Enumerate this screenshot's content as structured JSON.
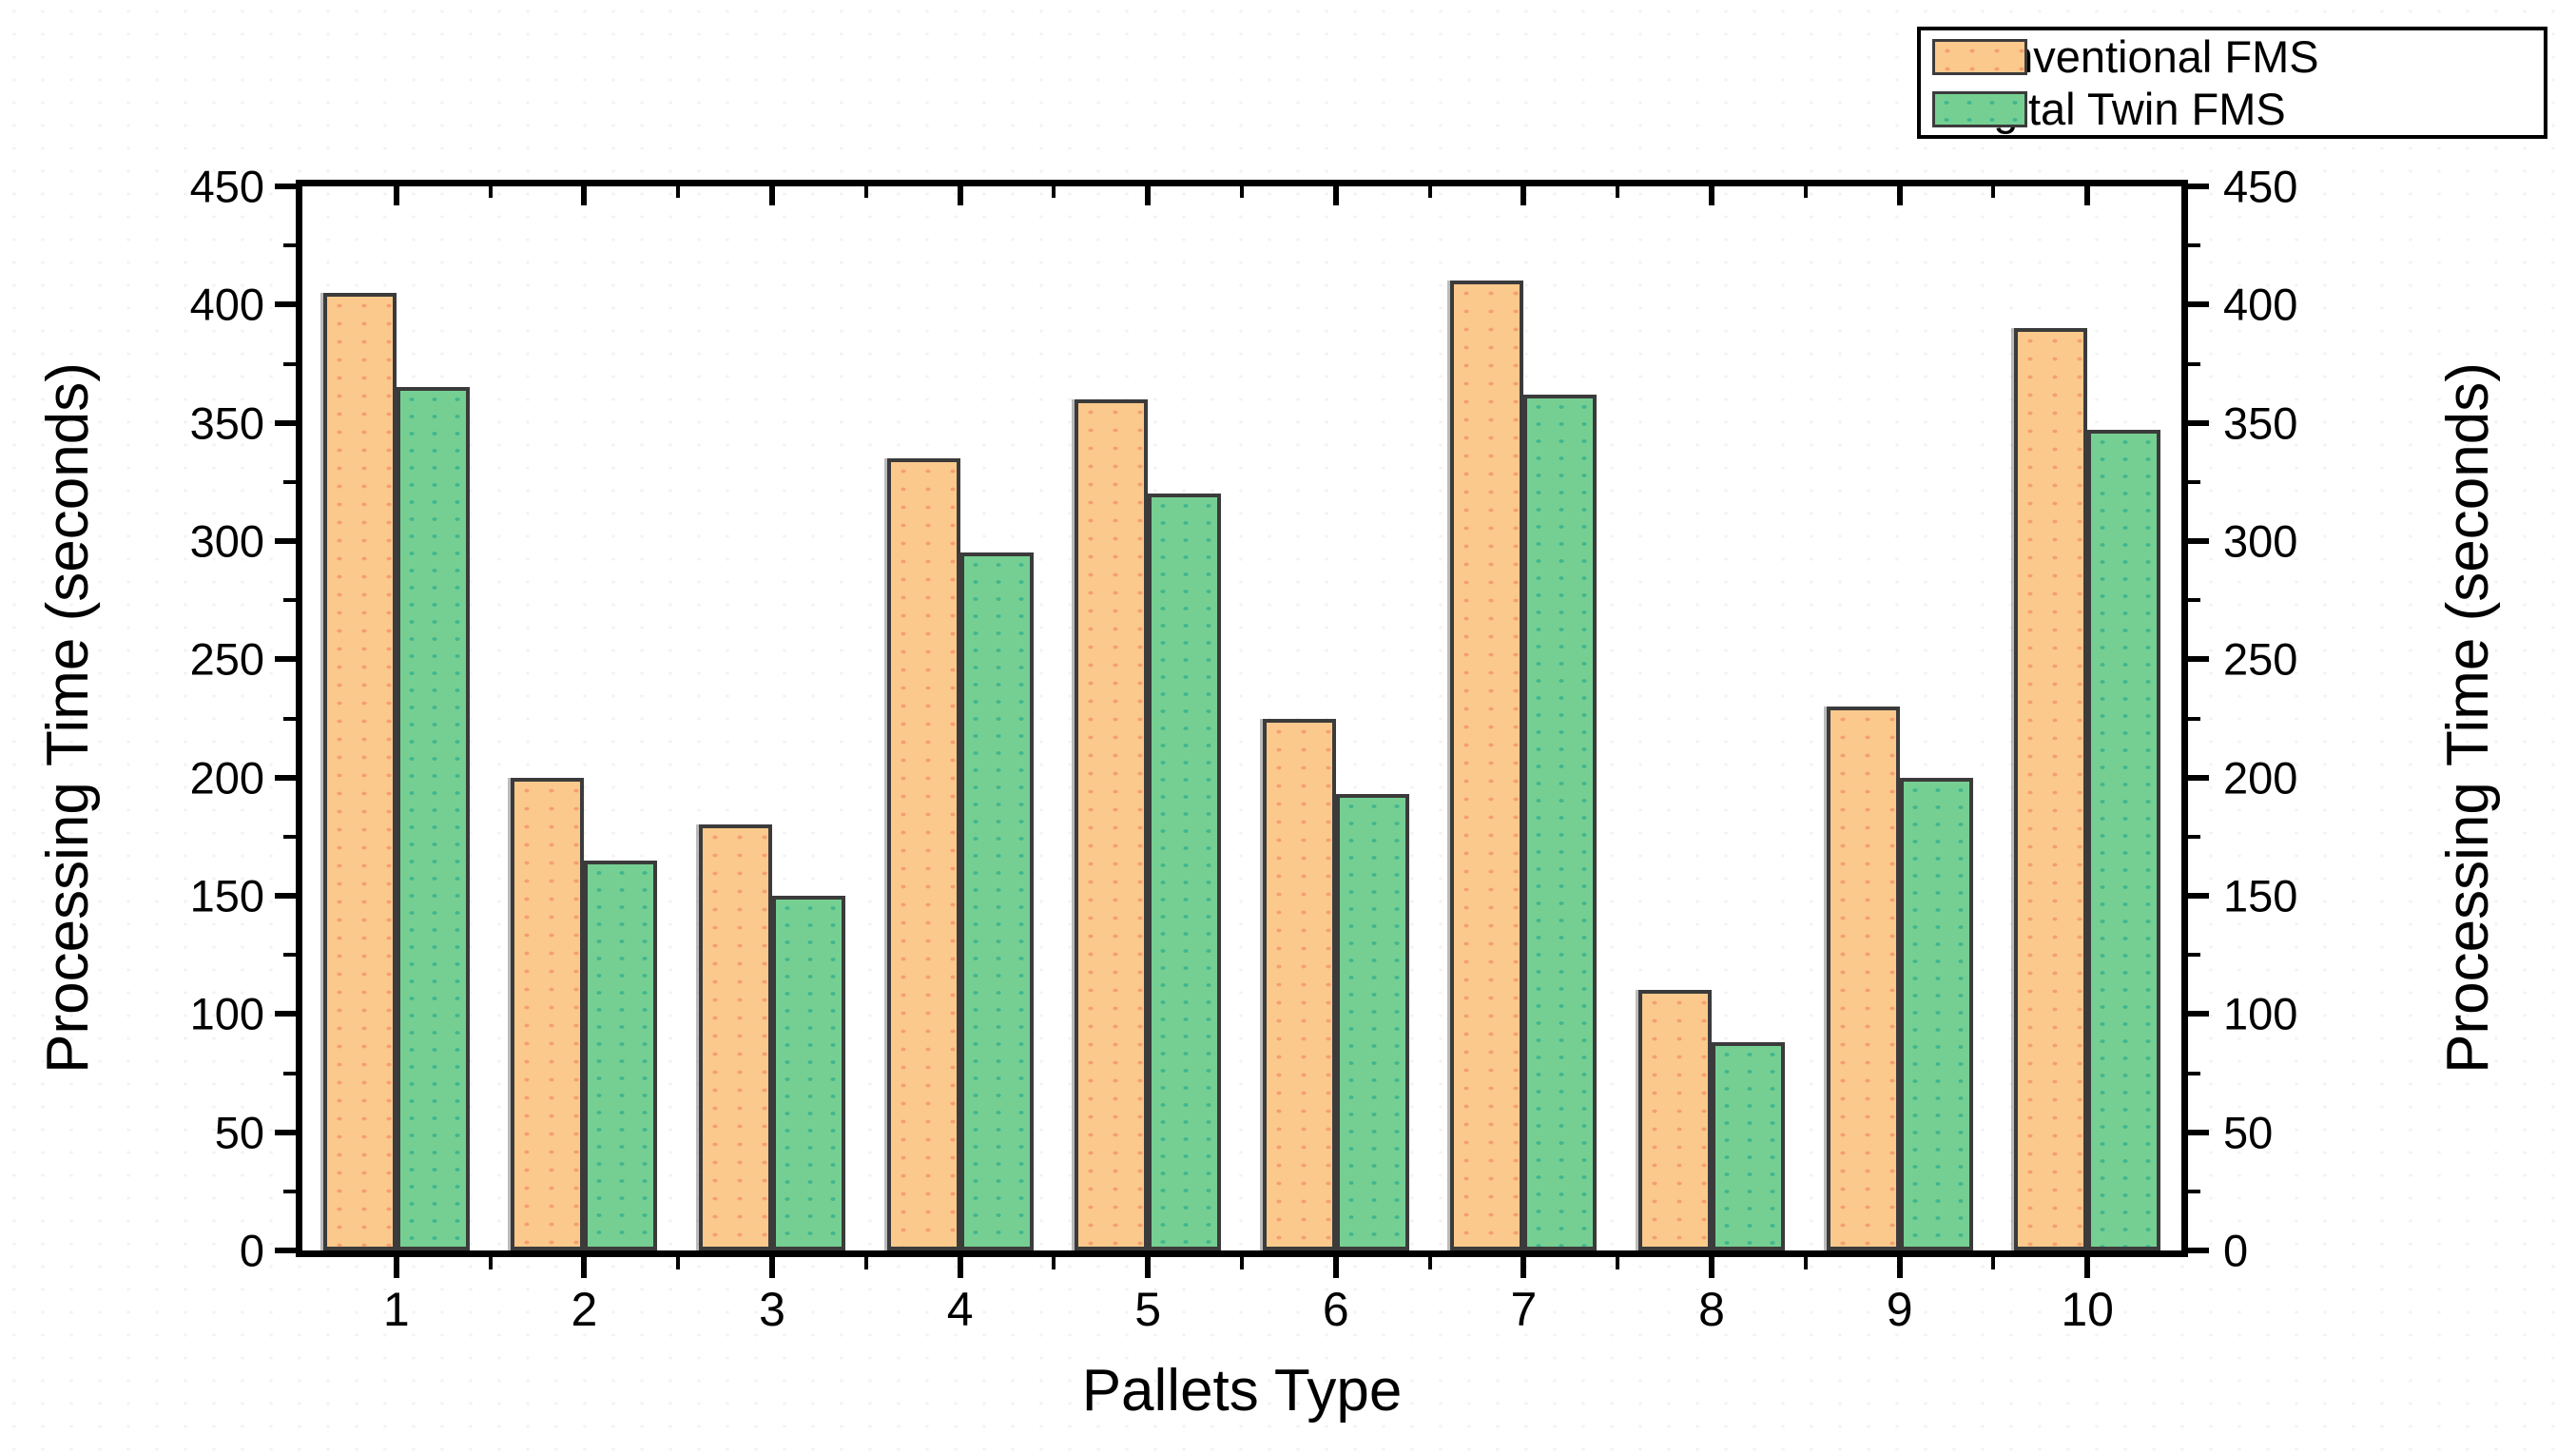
{
  "figure": {
    "xlabel": "Pallets Type",
    "ylabel_left": "Processing Time (seconds)",
    "ylabel_right": "Processing Time (seconds)"
  },
  "legend": {
    "items": [
      {
        "label": "Conventional FMS",
        "color": "#FBC98C"
      },
      {
        "label": "Digital Twin FMS",
        "color": "#76CF92"
      }
    ]
  },
  "chart_data": {
    "type": "bar",
    "title": "",
    "categories": [
      "1",
      "2",
      "3",
      "4",
      "5",
      "6",
      "7",
      "8",
      "9",
      "10"
    ],
    "series": [
      {
        "name": "Conventional FMS",
        "color": "#FBC98C",
        "values": [
          405,
          200,
          180,
          335,
          360,
          225,
          410,
          110,
          230,
          390
        ]
      },
      {
        "name": "Digital Twin FMS",
        "color": "#76CF92",
        "values": [
          365,
          165,
          150,
          295,
          320,
          193,
          362,
          88,
          200,
          347
        ]
      }
    ],
    "xlabel": "Pallets Type",
    "ylabel": "Processing Time (seconds)",
    "ylim": [
      0,
      450
    ],
    "y_major_ticks": [
      0,
      50,
      100,
      150,
      200,
      250,
      300,
      350,
      400,
      450
    ],
    "y_minor_ticks": [
      25,
      75,
      125,
      175,
      225,
      275,
      325,
      375,
      425
    ],
    "x_axis_sides": [
      "bottom",
      "top"
    ],
    "y_axis_sides": [
      "left",
      "right"
    ],
    "grid": false,
    "legend_position": "top-right-outside",
    "bar_border_color": "#3b3b3b",
    "axis_color": "#000000"
  }
}
